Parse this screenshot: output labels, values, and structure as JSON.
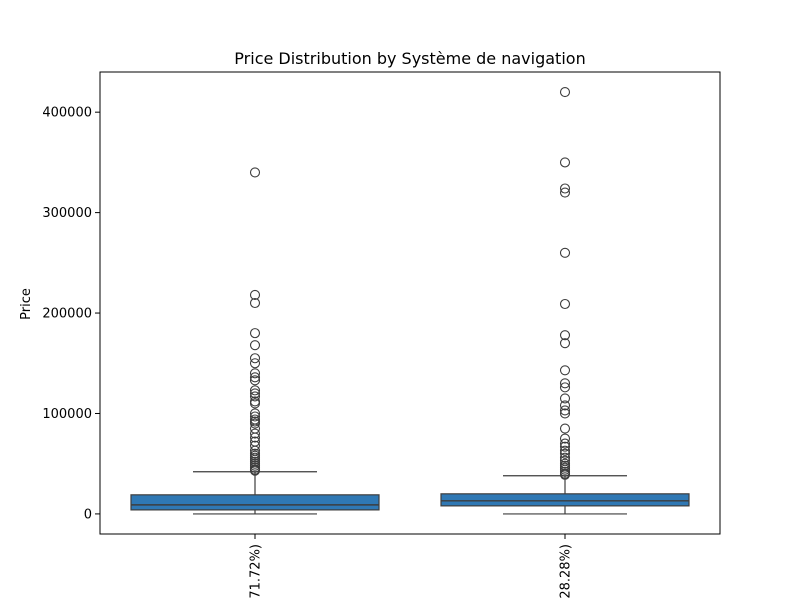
{
  "chart_data": {
    "type": "box",
    "title": "Price Distribution by Système de navigation",
    "xlabel": "",
    "ylabel": "Price",
    "ylim": [
      -20000,
      440000
    ],
    "yticks": [
      0,
      100000,
      200000,
      300000,
      400000
    ],
    "ytick_labels": [
      "0",
      "100000",
      "200000",
      "300000",
      "400000"
    ],
    "categories": [
      "71.72%)",
      "28.28%)"
    ],
    "box_color": "#2f78b4",
    "grid": false,
    "legend": false,
    "boxes": [
      {
        "q1": 4000,
        "median": 9000,
        "q3": 19000,
        "whisker_low": 0,
        "whisker_high": 42000,
        "outliers": [
          340000,
          218000,
          210000,
          180000,
          168000,
          155000,
          150000,
          140000,
          136000,
          133000,
          123000,
          120000,
          117000,
          112000,
          110000,
          100000,
          97000,
          94000,
          92000,
          90000,
          85000,
          80000,
          76000,
          72000,
          68000,
          63000,
          60000,
          58000,
          56000,
          54000,
          52000,
          50000,
          48000,
          46000,
          44000,
          43000
        ]
      },
      {
        "q1": 8000,
        "median": 13000,
        "q3": 20000,
        "whisker_low": 0,
        "whisker_high": 38000,
        "outliers": [
          420000,
          350000,
          324000,
          320000,
          260000,
          209000,
          178000,
          170000,
          143000,
          130000,
          126000,
          115000,
          108000,
          103000,
          100000,
          85000,
          75000,
          70000,
          67000,
          63000,
          60000,
          56000,
          53000,
          50000,
          48000,
          46000,
          44000,
          42000,
          40000,
          39000
        ]
      }
    ]
  }
}
